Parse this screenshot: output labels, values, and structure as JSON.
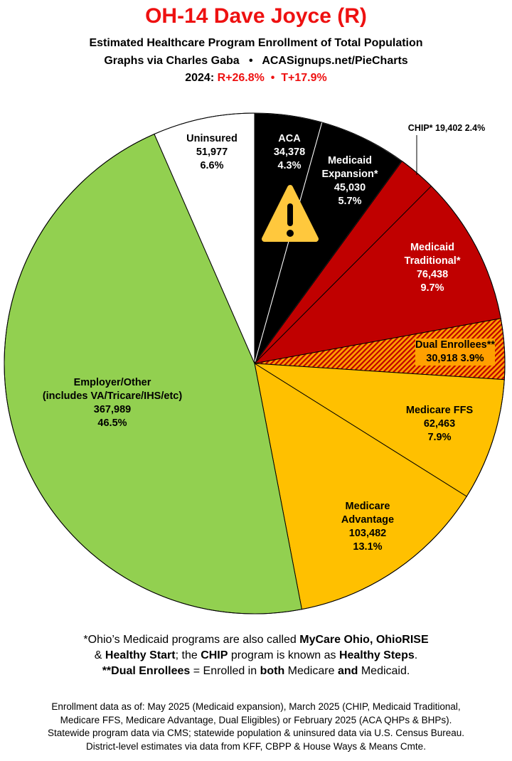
{
  "header": {
    "title": "OH-14 Dave Joyce (R)",
    "subtitle": "Estimated Healthcare Program Enrollment of Total Population",
    "credit": "Graphs via Charles Gaba   •   ACASignups.net/PieCharts",
    "year_label": "2024:",
    "margins": "R+26.8%  •  T+17.9%"
  },
  "chart_data": {
    "type": "pie",
    "start": "top, clockwise",
    "slices": [
      {
        "label": "ACA",
        "value": 34378,
        "percent": "4.3%",
        "value_text": "34,378",
        "color": "#000000"
      },
      {
        "label": "Medicaid Expansion*",
        "value": 45030,
        "percent": "5.7%",
        "value_text": "45,030",
        "color": "#000000"
      },
      {
        "label": "CHIP*",
        "value": 19402,
        "percent": "2.4%",
        "value_text": "19,402",
        "color": "#c00000"
      },
      {
        "label": "Medicaid Traditional*",
        "value": 76438,
        "percent": "9.7%",
        "value_text": "76,438",
        "color": "#c00000"
      },
      {
        "label": "Dual Enrollees**",
        "value": 30918,
        "percent": "3.9%",
        "value_text": "30,918",
        "color": "#ffc000",
        "pattern": "red-orange hatch"
      },
      {
        "label": "Medicare FFS",
        "value": 62463,
        "percent": "7.9%",
        "value_text": "62,463",
        "color": "#ffc000"
      },
      {
        "label": "Medicare Advantage",
        "value": 103482,
        "percent": "13.1%",
        "value_text": "103,482",
        "color": "#ffc000"
      },
      {
        "label": "Employer/Other (includes VA/Tricare/IHS/etc)",
        "value": 367989,
        "percent": "46.5%",
        "value_text": "367,989",
        "color": "#92d050"
      },
      {
        "label": "Uninsured",
        "value": 51977,
        "percent": "6.6%",
        "value_text": "51,977",
        "color": "#ffffff"
      }
    ],
    "labels": {
      "aca": "ACA",
      "exp1": "Medicaid",
      "exp2": "Expansion*",
      "chip": "CHIP* 19,402 2.4%",
      "trad1": "Medicaid",
      "trad2": "Traditional*",
      "dual": "Dual Enrollees**",
      "dual2": "30,918 3.9%",
      "ffs": "Medicare FFS",
      "ma1": "Medicare",
      "ma2": "Advantage",
      "emp1": "Employer/Other",
      "emp2": "(includes VA/Tricare/IHS/etc)",
      "unins": "Uninsured"
    },
    "annotation_icon": "warning-icon"
  },
  "notes": {
    "line1_a": "*Ohio’s Medicaid programs are also called ",
    "line1_b": "MyCare Ohio, OhioRISE",
    "line2_a": "& ",
    "line2_b": "Healthy Start",
    "line2_c": "; the ",
    "line2_d": "CHIP",
    "line2_e": " program is known as ",
    "line2_f": "Healthy Steps",
    "line2_g": ".",
    "line3_a": "**Dual Enrollees",
    "line3_b": " = Enrolled in ",
    "line3_c": "both",
    "line3_d": " Medicare ",
    "line3_e": "and",
    "line3_f": " Medicaid."
  },
  "footer": {
    "line1": "Enrollment data as of: May 2025 (Medicaid expansion), March 2025 (CHIP, Medicaid Traditional,",
    "line2": "Medicare FFS, Medicare Advantage, Dual Eligibles) or February 2025 (ACA QHPs & BHPs).",
    "line3": "Statewide program data via CMS; statewide population & uninsured data via U.S. Census Bureau.",
    "line4": "District-level estimates via data from KFF, CBPP & House Ways & Means Cmte."
  }
}
